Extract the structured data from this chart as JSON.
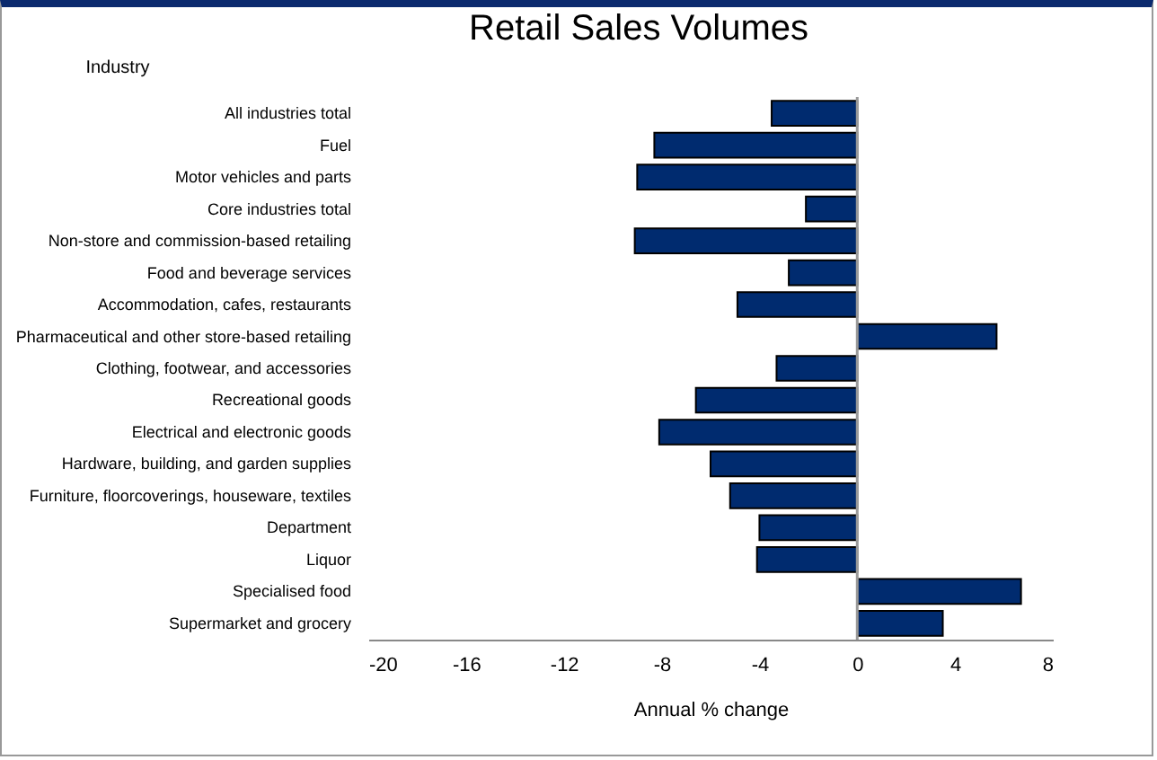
{
  "chart_data": {
    "type": "bar",
    "orientation": "horizontal",
    "title": "Retail Sales Volumes",
    "ylabel": "Industry",
    "xlabel": "Annual % change",
    "categories": [
      "All industries total",
      "Fuel",
      "Motor vehicles and parts",
      "Core industries total",
      "Non-store and commission-based retailing",
      "Food and beverage services",
      "Accommodation, cafes, restaurants",
      "Pharmaceutical and other store-based retailing",
      "Clothing, footwear, and accessories",
      "Recreational goods",
      "Electrical and electronic goods",
      "Hardware, building, and garden supplies",
      "Furniture, floorcoverings, houseware, textiles",
      "Department",
      "Liquor",
      "Specialised food",
      "Supermarket and grocery"
    ],
    "values": [
      -3.5,
      -8.3,
      -9.0,
      -2.1,
      -9.1,
      -2.8,
      -4.9,
      5.7,
      -3.3,
      -6.6,
      -8.1,
      -6.0,
      -5.2,
      -4.0,
      -4.1,
      6.7,
      3.5
    ],
    "color": "#002b6f",
    "xlim": [
      -20,
      8
    ],
    "xticks": [
      -20,
      -16,
      -12,
      -8,
      -4,
      0,
      4,
      8
    ],
    "ref_lines": [
      {
        "axis": "x",
        "value": 0,
        "color": "#999999"
      }
    ]
  }
}
